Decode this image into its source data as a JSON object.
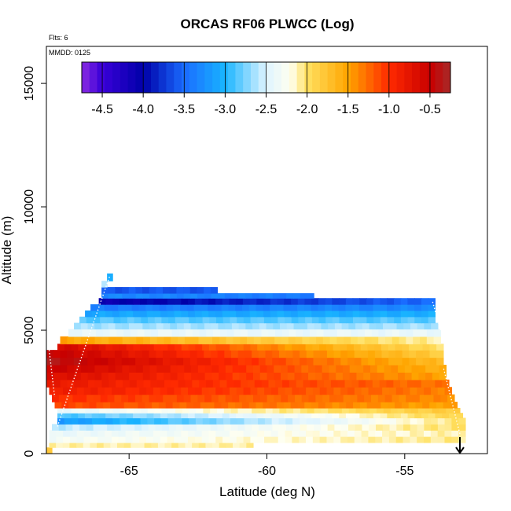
{
  "chart_data": {
    "type": "heatmap",
    "title": "ORCAS RF06 PLWCC (Log)",
    "xlabel": "Latitude (deg N)",
    "ylabel": "Altitude (m)",
    "xlim": [
      -68.0,
      -52.0
    ],
    "ylim": [
      0,
      16500
    ],
    "x_ticks": [
      -65,
      -60,
      -55
    ],
    "x_tick_labels": [
      "-65",
      "-60",
      "-55"
    ],
    "y_ticks": [
      0,
      5000,
      10000,
      15000
    ],
    "y_tick_labels": [
      "0",
      "5000",
      "10000",
      "15000"
    ],
    "annotations": {
      "flights": "Flts: 6",
      "date": "MMDD: 0125"
    },
    "colorbar": {
      "range": [
        -4.75,
        -0.25
      ],
      "ticks": [
        -4.5,
        -4.0,
        -3.5,
        -3.0,
        -2.5,
        -2.0,
        -1.5,
        -1.0,
        -0.5
      ],
      "tick_labels": [
        "-4.5",
        "-4.0",
        "-3.5",
        "-3.0",
        "-2.5",
        "-2.0",
        "-1.5",
        "-1.0",
        "-0.5"
      ],
      "stops": [
        {
          "v": -4.75,
          "c": "#8a2be2"
        },
        {
          "v": -4.5,
          "c": "#3a00d8"
        },
        {
          "v": -4.0,
          "c": "#0000a8"
        },
        {
          "v": -3.5,
          "c": "#1a6cff"
        },
        {
          "v": -3.0,
          "c": "#19b4ff"
        },
        {
          "v": -2.5,
          "c": "#dff4ff"
        },
        {
          "v": -2.2,
          "c": "#fffff0"
        },
        {
          "v": -2.0,
          "c": "#ffe060"
        },
        {
          "v": -1.5,
          "c": "#ffa500"
        },
        {
          "v": -1.0,
          "c": "#ff2a00"
        },
        {
          "v": -0.5,
          "c": "#c80000"
        },
        {
          "v": -0.25,
          "c": "#a82a28"
        }
      ]
    },
    "layers": [
      {
        "alt": [
          0,
          250
        ],
        "lat": [
          -68.0,
          -67.8
        ],
        "values": [
          -1.8,
          -1.8
        ]
      },
      {
        "alt": [
          250,
          450
        ],
        "lat": [
          -67.9,
          -60.5
        ],
        "values": [
          -2.1,
          -2.1
        ]
      },
      {
        "alt": [
          450,
          700
        ],
        "lat": [
          -67.9,
          -52.8
        ],
        "values": [
          -2.3,
          -2.05
        ]
      },
      {
        "alt": [
          700,
          950
        ],
        "lat": [
          -67.9,
          -52.8
        ],
        "values": [
          -2.4,
          -2.1
        ]
      },
      {
        "alt": [
          950,
          1200
        ],
        "lat": [
          -67.8,
          -52.8
        ],
        "values": [
          -2.6,
          -2.0
        ]
      },
      {
        "alt": [
          1200,
          1450
        ],
        "lat": [
          -67.6,
          -52.8
        ],
        "values": [
          -3.2,
          -2.0
        ]
      },
      {
        "alt": [
          1450,
          1650
        ],
        "lat": [
          -67.6,
          -52.9
        ],
        "values": [
          -2.9,
          -1.9
        ]
      },
      {
        "alt": [
          1650,
          1850
        ],
        "lat": [
          -67.6,
          -53.0
        ],
        "values": [
          -2.4,
          -1.8
        ]
      },
      {
        "alt": [
          1850,
          2100
        ],
        "lat": [
          -67.7,
          -53.1
        ],
        "values": [
          -1.1,
          -1.5
        ]
      },
      {
        "alt": [
          2100,
          2400
        ],
        "lat": [
          -67.8,
          -53.2
        ],
        "values": [
          -1.0,
          -1.4
        ]
      },
      {
        "alt": [
          2400,
          2700
        ],
        "lat": [
          -67.9,
          -53.3
        ],
        "values": [
          -0.85,
          -1.35
        ]
      },
      {
        "alt": [
          2700,
          3000
        ],
        "lat": [
          -68.0,
          -53.4
        ],
        "values": [
          -0.8,
          -1.3
        ]
      },
      {
        "alt": [
          3000,
          3300
        ],
        "lat": [
          -68.0,
          -53.5
        ],
        "values": [
          -0.65,
          -1.5
        ]
      },
      {
        "alt": [
          3300,
          3600
        ],
        "lat": [
          -68.0,
          -53.5
        ],
        "values": [
          -0.5,
          -1.6
        ]
      },
      {
        "alt": [
          3600,
          3900
        ],
        "lat": [
          -68.0,
          -53.6
        ],
        "values": [
          -0.35,
          -1.7
        ]
      },
      {
        "alt": [
          3900,
          4200
        ],
        "lat": [
          -68.0,
          -53.6
        ],
        "values": [
          -0.45,
          -1.85
        ]
      },
      {
        "alt": [
          4200,
          4450
        ],
        "lat": [
          -67.6,
          -53.6
        ],
        "values": [
          -0.6,
          -2.0
        ]
      },
      {
        "alt": [
          4450,
          4750
        ],
        "lat": [
          -67.5,
          -53.7
        ],
        "values": [
          -1.5,
          -2.1
        ]
      },
      {
        "alt": [
          4750,
          5050
        ],
        "lat": [
          -67.2,
          -53.7
        ],
        "values": [
          -2.4,
          -2.4
        ]
      },
      {
        "alt": [
          5050,
          5300
        ],
        "lat": [
          -67.0,
          -53.8
        ],
        "values": [
          -2.65,
          -2.65
        ]
      },
      {
        "alt": [
          5300,
          5550
        ],
        "lat": [
          -66.8,
          -53.9
        ],
        "values": [
          -2.85,
          -2.85
        ]
      },
      {
        "alt": [
          5550,
          5800
        ],
        "lat": [
          -66.6,
          -53.9
        ],
        "values": [
          -3.1,
          -3.05
        ]
      },
      {
        "alt": [
          5800,
          6050
        ],
        "lat": [
          -66.4,
          -53.9
        ],
        "values": [
          -3.4,
          -3.3
        ]
      },
      {
        "alt": [
          6050,
          6300
        ],
        "lat": [
          -66.1,
          -53.9
        ],
        "values": [
          -4.1,
          -3.5
        ]
      },
      {
        "alt": [
          6300,
          6500
        ],
        "lat": [
          -66.0,
          -58.3
        ],
        "values": [
          -3.3,
          -3.4
        ]
      },
      {
        "alt": [
          6500,
          6750
        ],
        "lat": [
          -66.0,
          -61.8
        ],
        "values": [
          -3.6,
          -3.6
        ]
      },
      {
        "alt": [
          6750,
          7000
        ],
        "lat": [
          -66.0,
          -65.8
        ],
        "values": [
          -2.6,
          -2.6
        ]
      },
      {
        "alt": [
          7000,
          7300
        ],
        "lat": [
          -65.8,
          -65.6
        ],
        "values": [
          -3.0,
          -3.0
        ]
      }
    ]
  }
}
